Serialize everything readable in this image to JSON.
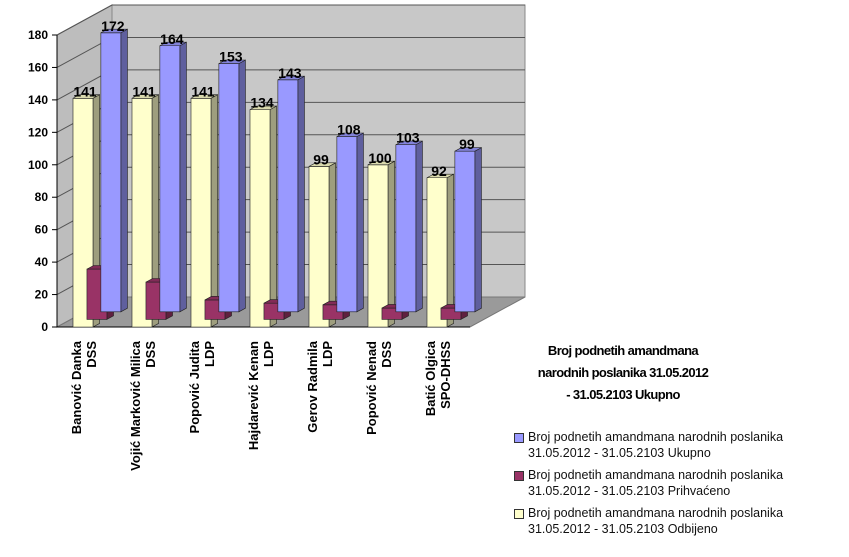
{
  "chart_data": {
    "type": "bar",
    "categories": [
      [
        "Banović Danka",
        "DSS"
      ],
      [
        "Vojić Marković Milica",
        "DSS"
      ],
      [
        "Popović Judita",
        "LDP"
      ],
      [
        "Hajdarević Kenan",
        "LDP"
      ],
      [
        "Gerov Radmila",
        "LDP"
      ],
      [
        "Popović Nenad",
        "DSS"
      ],
      [
        "Batić Olgica",
        "SPO-DHSS"
      ]
    ],
    "series": [
      {
        "name": "Broj podnetih amandmana narodnih poslanika 31.05.2012 - 31.05.2103 Ukupno",
        "values": [
          172,
          164,
          153,
          143,
          108,
          103,
          99
        ]
      },
      {
        "name": "Broj podnetih amandmana narodnih poslanika 31.05.2012 - 31.05.2103 Prihvaćeno",
        "values": [
          31,
          23,
          12,
          10,
          9,
          7,
          7
        ]
      },
      {
        "name": "Broj podnetih amandmana narodnih poslanika 31.05.2012 - 31.05.2103 Odbijeno",
        "values": [
          141,
          141,
          141,
          134,
          99,
          100,
          92
        ]
      }
    ],
    "data_labels": [
      [
        "172",
        "164",
        "153",
        "143",
        "108",
        "103",
        "99"
      ],
      [
        "",
        "",
        "",
        "",
        "",
        "",
        ""
      ],
      [
        "141",
        "141",
        "141",
        "134",
        "99",
        "100",
        "92"
      ]
    ],
    "depth_axis_title": "Broj podnetih amandmana narodnih poslanika 31.05.2012 - 31.05.2103 Ukupno",
    "depth_axis_title_lines": [
      "Broj podnetih amandmana",
      "narodnih poslanika 31.05.2012",
      "- 31.05.2103 Ukupno"
    ],
    "ylim": [
      0,
      180
    ],
    "yticks": [
      0,
      20,
      40,
      60,
      80,
      100,
      120,
      140,
      160,
      180
    ],
    "colors": [
      "#9999ff",
      "#993366",
      "#ffffcc"
    ],
    "legend": {
      "position": "bottom-right",
      "items": [
        {
          "line1": "Broj podnetih amandmana narodnih poslanika",
          "line2": "31.05.2012 - 31.05.2103 Ukupno"
        },
        {
          "line1": "Broj podnetih amandmana narodnih poslanika",
          "line2": "31.05.2012 - 31.05.2103 Prihvaćeno"
        },
        {
          "line1": "Broj podnetih amandmana narodnih poslanika",
          "line2": "31.05.2012 - 31.05.2103 Odbijeno"
        }
      ]
    },
    "grid": true
  }
}
